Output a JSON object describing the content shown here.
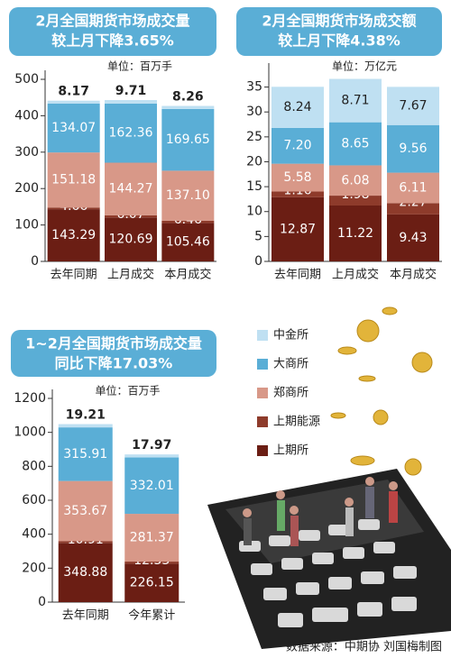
{
  "chart_data": [
    {
      "type": "stacked_bar",
      "title": "2月全国期货市场成交量",
      "subtitle": "较上月下降3.65%",
      "unit": "单位：百万手",
      "categories": [
        "去年同期",
        "上月成交",
        "本月成交"
      ],
      "ylim": [
        0,
        500
      ],
      "yticks": [
        0,
        100,
        200,
        300,
        400,
        500
      ],
      "series": [
        {
          "color": "#6b1e14",
          "values": [
            143.29,
            120.69,
            105.46
          ]
        },
        {
          "color": "#8e3b2b",
          "values": [
            4.66,
            6.07,
            6.46
          ]
        },
        {
          "color": "#d89888",
          "values": [
            151.18,
            144.27,
            137.1
          ],
          "value_labels": [
            "151.18",
            "144.27",
            "137.10"
          ]
        },
        {
          "color": "#5aaed6",
          "values": [
            134.07,
            162.36,
            169.65
          ]
        },
        {
          "color": "#bfe0f2",
          "values": [
            8.17,
            9.71,
            8.26
          ]
        }
      ]
    },
    {
      "type": "stacked_bar",
      "title": "2月全国期货市场成交额",
      "subtitle": "较上月下降4.38%",
      "unit": "单位：万亿元",
      "categories": [
        "去年同期",
        "上月成交",
        "本月成交"
      ],
      "ylim": [
        0,
        38
      ],
      "yticks": [
        0,
        5,
        10,
        15,
        20,
        25,
        30,
        35
      ],
      "series": [
        {
          "color": "#6b1e14",
          "values": [
            12.87,
            11.22,
            9.43
          ]
        },
        {
          "color": "#8e3b2b",
          "values": [
            1.16,
            1.98,
            2.27
          ]
        },
        {
          "color": "#d89888",
          "values": [
            5.58,
            6.08,
            6.11
          ]
        },
        {
          "color": "#5aaed6",
          "values": [
            7.2,
            8.65,
            9.56
          ],
          "value_labels": [
            "7.20",
            "8.65",
            "9.56"
          ]
        },
        {
          "color": "#bfe0f2",
          "values": [
            8.24,
            8.71,
            7.67
          ]
        }
      ]
    },
    {
      "type": "stacked_bar",
      "title": "1~2月全国期货市场成交量",
      "subtitle": "同比下降17.03%",
      "unit": "单位：百万手",
      "categories": [
        "去年同期",
        "今年累计"
      ],
      "ylim": [
        0,
        1200
      ],
      "yticks": [
        0,
        200,
        400,
        600,
        800,
        1000,
        1200
      ],
      "series": [
        {
          "name": "上期所",
          "color": "#6b1e14",
          "values": [
            348.88,
            226.15
          ]
        },
        {
          "name": "上期能源",
          "color": "#8e3b2b",
          "values": [
            10.91,
            12.53
          ]
        },
        {
          "name": "郑商所",
          "color": "#d89888",
          "values": [
            353.67,
            281.37
          ]
        },
        {
          "name": "大商所",
          "color": "#5aaed6",
          "values": [
            315.91,
            332.01
          ]
        },
        {
          "name": "中金所",
          "color": "#bfe0f2",
          "values": [
            19.21,
            17.97
          ]
        }
      ]
    }
  ],
  "source": "数据来源：中期协  刘国梅制图"
}
